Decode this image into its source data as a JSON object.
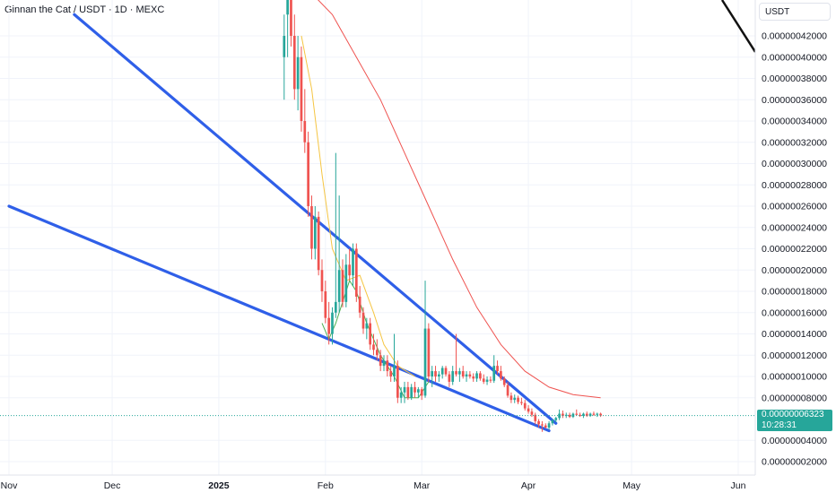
{
  "header": {
    "title": "Ginnan the Cat / USDT · 1D · MEXC",
    "unit": "USDT"
  },
  "price_tag": {
    "price": "0.00000006323",
    "countdown": "10:28:31"
  },
  "colors": {
    "up": "#26a69a",
    "down": "#ef5350",
    "trendline": "#2f5fe8",
    "ma_long": "#ef5350",
    "ma_short": "#f5c542",
    "ma_green": "#4caf50",
    "price_tag_bg": "#26a69a",
    "axis_text": "#131722",
    "grid": "#f0f3fa"
  },
  "chart_data": {
    "type": "candlestick",
    "y_axis": {
      "ticks": [
        "0.00000042000",
        "0.00000040000",
        "0.00000038000",
        "0.00000036000",
        "0.00000034000",
        "0.00000032000",
        "0.00000030000",
        "0.00000028000",
        "0.00000026000",
        "0.00000024000",
        "0.00000022000",
        "0.00000020000",
        "0.00000018000",
        "0.00000016000",
        "0.00000014000",
        "0.00000012000",
        "0.00000010000",
        "0.00000008000",
        "0.00000004000",
        "0.00000002000"
      ],
      "scale": 1e-08,
      "range": [
        0,
        44
      ]
    },
    "x_axis": {
      "ticks": [
        {
          "label": "Nov",
          "date": "2024-11-01"
        },
        {
          "label": "Dec",
          "date": "2024-12-01"
        },
        {
          "label": "2025",
          "date": "2025-01-01"
        },
        {
          "label": "Feb",
          "date": "2025-02-01"
        },
        {
          "label": "Mar",
          "date": "2025-03-01"
        },
        {
          "label": "Apr",
          "date": "2025-04-01"
        },
        {
          "label": "May",
          "date": "2025-05-01"
        },
        {
          "label": "Jun",
          "date": "2025-06-01"
        }
      ],
      "range": [
        "2024-11-01",
        "2025-06-05"
      ]
    },
    "candles_ohlc_1e-8": [
      {
        "date": "2025-01-20",
        "o": 40,
        "h": 44,
        "l": 36,
        "c": 42
      },
      {
        "date": "2025-01-21",
        "o": 44,
        "h": 46,
        "l": 40,
        "c": 46
      },
      {
        "date": "2025-01-22",
        "o": 46,
        "h": 47,
        "l": 41,
        "c": 42
      },
      {
        "date": "2025-01-23",
        "o": 42,
        "h": 44,
        "l": 36,
        "c": 37
      },
      {
        "date": "2025-01-24",
        "o": 37,
        "h": 42,
        "l": 35,
        "c": 40
      },
      {
        "date": "2025-01-25",
        "o": 40,
        "h": 41,
        "l": 33,
        "c": 34
      },
      {
        "date": "2025-01-26",
        "o": 34,
        "h": 37,
        "l": 31,
        "c": 32
      },
      {
        "date": "2025-01-27",
        "o": 32,
        "h": 33,
        "l": 25,
        "c": 26
      },
      {
        "date": "2025-01-28",
        "o": 26,
        "h": 27,
        "l": 21,
        "c": 22
      },
      {
        "date": "2025-01-29",
        "o": 22,
        "h": 26,
        "l": 21,
        "c": 25
      },
      {
        "date": "2025-01-30",
        "o": 25,
        "h": 25.5,
        "l": 19.5,
        "c": 20
      },
      {
        "date": "2025-01-31",
        "o": 20,
        "h": 21,
        "l": 17,
        "c": 18
      },
      {
        "date": "2025-02-01",
        "o": 18,
        "h": 19,
        "l": 15,
        "c": 15.5
      },
      {
        "date": "2025-02-02",
        "o": 15.5,
        "h": 17,
        "l": 13,
        "c": 14
      },
      {
        "date": "2025-02-03",
        "o": 14,
        "h": 16.5,
        "l": 13,
        "c": 16
      },
      {
        "date": "2025-02-04",
        "o": 16,
        "h": 31,
        "l": 15.5,
        "c": 17
      },
      {
        "date": "2025-02-05",
        "o": 17,
        "h": 27,
        "l": 16,
        "c": 20
      },
      {
        "date": "2025-02-06",
        "o": 20,
        "h": 21,
        "l": 16.5,
        "c": 17
      },
      {
        "date": "2025-02-07",
        "o": 17,
        "h": 21.5,
        "l": 16.5,
        "c": 20.5
      },
      {
        "date": "2025-02-08",
        "o": 20.5,
        "h": 22,
        "l": 19,
        "c": 19.5
      },
      {
        "date": "2025-02-09",
        "o": 19.5,
        "h": 22.5,
        "l": 18.5,
        "c": 22
      },
      {
        "date": "2025-02-10",
        "o": 22,
        "h": 22.5,
        "l": 17,
        "c": 17.5
      },
      {
        "date": "2025-02-11",
        "o": 17.5,
        "h": 18.5,
        "l": 15.5,
        "c": 16
      },
      {
        "date": "2025-02-12",
        "o": 16,
        "h": 16.5,
        "l": 14,
        "c": 14.5
      },
      {
        "date": "2025-02-13",
        "o": 14.5,
        "h": 15.5,
        "l": 13.5,
        "c": 15
      },
      {
        "date": "2025-02-14",
        "o": 15,
        "h": 15.5,
        "l": 12.5,
        "c": 13
      },
      {
        "date": "2025-02-15",
        "o": 13,
        "h": 14,
        "l": 12,
        "c": 12.5
      },
      {
        "date": "2025-02-16",
        "o": 12.5,
        "h": 13.5,
        "l": 11.5,
        "c": 12
      },
      {
        "date": "2025-02-17",
        "o": 12,
        "h": 12.5,
        "l": 10.5,
        "c": 11
      },
      {
        "date": "2025-02-18",
        "o": 11,
        "h": 12,
        "l": 10.5,
        "c": 11.5
      },
      {
        "date": "2025-02-19",
        "o": 11.5,
        "h": 12,
        "l": 10,
        "c": 10.5
      },
      {
        "date": "2025-02-20",
        "o": 10.5,
        "h": 11,
        "l": 9.5,
        "c": 10
      },
      {
        "date": "2025-02-21",
        "o": 10,
        "h": 14,
        "l": 9.5,
        "c": 11
      },
      {
        "date": "2025-02-22",
        "o": 11,
        "h": 11.5,
        "l": 7.5,
        "c": 8
      },
      {
        "date": "2025-02-23",
        "o": 8,
        "h": 9,
        "l": 7.5,
        "c": 8.5
      },
      {
        "date": "2025-02-24",
        "o": 8.5,
        "h": 9.5,
        "l": 7.5,
        "c": 9
      },
      {
        "date": "2025-02-25",
        "o": 9,
        "h": 9.5,
        "l": 7.8,
        "c": 8
      },
      {
        "date": "2025-02-26",
        "o": 8,
        "h": 9.3,
        "l": 7.8,
        "c": 9
      },
      {
        "date": "2025-02-27",
        "o": 9,
        "h": 9.5,
        "l": 8,
        "c": 8.5
      },
      {
        "date": "2025-02-28",
        "o": 8.5,
        "h": 9,
        "l": 8,
        "c": 8.8
      },
      {
        "date": "2025-03-01",
        "o": 8.8,
        "h": 9,
        "l": 7.8,
        "c": 8.2
      },
      {
        "date": "2025-03-02",
        "o": 8.2,
        "h": 19,
        "l": 8,
        "c": 14.5
      },
      {
        "date": "2025-03-03",
        "o": 14.5,
        "h": 15,
        "l": 9.5,
        "c": 10
      },
      {
        "date": "2025-03-04",
        "o": 10,
        "h": 11,
        "l": 9,
        "c": 10.5
      },
      {
        "date": "2025-03-05",
        "o": 10.5,
        "h": 11,
        "l": 9.5,
        "c": 10
      },
      {
        "date": "2025-03-06",
        "o": 10,
        "h": 10.5,
        "l": 9.5,
        "c": 10.2
      },
      {
        "date": "2025-03-07",
        "o": 10.2,
        "h": 11,
        "l": 9.8,
        "c": 10.8
      },
      {
        "date": "2025-03-08",
        "o": 10.8,
        "h": 11,
        "l": 10,
        "c": 10.2
      },
      {
        "date": "2025-03-09",
        "o": 10.2,
        "h": 10.5,
        "l": 9,
        "c": 9.5
      },
      {
        "date": "2025-03-10",
        "o": 9.5,
        "h": 11,
        "l": 9.2,
        "c": 10.5
      },
      {
        "date": "2025-03-11",
        "o": 10.5,
        "h": 14,
        "l": 10,
        "c": 10.2
      },
      {
        "date": "2025-03-12",
        "o": 10.2,
        "h": 10.8,
        "l": 9.5,
        "c": 10.5
      },
      {
        "date": "2025-03-13",
        "o": 10.5,
        "h": 11,
        "l": 9.8,
        "c": 10
      },
      {
        "date": "2025-03-14",
        "o": 10,
        "h": 10.5,
        "l": 9.5,
        "c": 10.2
      },
      {
        "date": "2025-03-15",
        "o": 10.2,
        "h": 10.5,
        "l": 9.8,
        "c": 10
      },
      {
        "date": "2025-03-16",
        "o": 10,
        "h": 10.3,
        "l": 9.5,
        "c": 9.8
      },
      {
        "date": "2025-03-17",
        "o": 9.8,
        "h": 10.5,
        "l": 9.5,
        "c": 10.3
      },
      {
        "date": "2025-03-18",
        "o": 10.3,
        "h": 10.5,
        "l": 9.6,
        "c": 9.8
      },
      {
        "date": "2025-03-19",
        "o": 9.8,
        "h": 10.2,
        "l": 9.3,
        "c": 9.5
      },
      {
        "date": "2025-03-20",
        "o": 9.5,
        "h": 10,
        "l": 9.2,
        "c": 9.7
      },
      {
        "date": "2025-03-21",
        "o": 9.7,
        "h": 10,
        "l": 9.4,
        "c": 9.6
      },
      {
        "date": "2025-03-22",
        "o": 9.6,
        "h": 12,
        "l": 9.4,
        "c": 11
      },
      {
        "date": "2025-03-23",
        "o": 11,
        "h": 11.5,
        "l": 10.2,
        "c": 10.5
      },
      {
        "date": "2025-03-24",
        "o": 10.5,
        "h": 11,
        "l": 9.6,
        "c": 9.8
      },
      {
        "date": "2025-03-25",
        "o": 9.8,
        "h": 10,
        "l": 9,
        "c": 9.2
      },
      {
        "date": "2025-03-26",
        "o": 9.2,
        "h": 9.5,
        "l": 8,
        "c": 8.2
      },
      {
        "date": "2025-03-27",
        "o": 8.2,
        "h": 8.5,
        "l": 7.5,
        "c": 7.8
      },
      {
        "date": "2025-03-28",
        "o": 7.8,
        "h": 8.3,
        "l": 7.5,
        "c": 8
      },
      {
        "date": "2025-03-29",
        "o": 8,
        "h": 8.2,
        "l": 7.4,
        "c": 7.6
      },
      {
        "date": "2025-03-30",
        "o": 7.6,
        "h": 8,
        "l": 7.3,
        "c": 7.5
      },
      {
        "date": "2025-03-31",
        "o": 7.5,
        "h": 7.8,
        "l": 6.8,
        "c": 7
      },
      {
        "date": "2025-04-01",
        "o": 7,
        "h": 7.3,
        "l": 6.5,
        "c": 6.7
      },
      {
        "date": "2025-04-02",
        "o": 6.7,
        "h": 7,
        "l": 6.2,
        "c": 6.4
      },
      {
        "date": "2025-04-03",
        "o": 6.4,
        "h": 6.6,
        "l": 5.5,
        "c": 5.8
      },
      {
        "date": "2025-04-04",
        "o": 5.8,
        "h": 6,
        "l": 5.2,
        "c": 5.5
      },
      {
        "date": "2025-04-05",
        "o": 5.5,
        "h": 5.8,
        "l": 4.8,
        "c": 5.4
      },
      {
        "date": "2025-04-06",
        "o": 5.4,
        "h": 5.6,
        "l": 5.1,
        "c": 5.2
      },
      {
        "date": "2025-04-07",
        "o": 5.2,
        "h": 5.8,
        "l": 5,
        "c": 5.6
      },
      {
        "date": "2025-04-08",
        "o": 5.6,
        "h": 6,
        "l": 5.4,
        "c": 5.9
      },
      {
        "date": "2025-04-09",
        "o": 5.9,
        "h": 6.2,
        "l": 5.7,
        "c": 6.1
      },
      {
        "date": "2025-04-10",
        "o": 6.1,
        "h": 6.9,
        "l": 5.9,
        "c": 6.5
      },
      {
        "date": "2025-04-11",
        "o": 6.5,
        "h": 6.8,
        "l": 6.1,
        "c": 6.3
      },
      {
        "date": "2025-04-12",
        "o": 6.3,
        "h": 6.6,
        "l": 6.1,
        "c": 6.4
      },
      {
        "date": "2025-04-13",
        "o": 6.4,
        "h": 6.6,
        "l": 6.1,
        "c": 6.2
      },
      {
        "date": "2025-04-14",
        "o": 6.2,
        "h": 6.6,
        "l": 6.1,
        "c": 6.5
      },
      {
        "date": "2025-04-15",
        "o": 6.5,
        "h": 6.9,
        "l": 6.3,
        "c": 6.4
      },
      {
        "date": "2025-04-16",
        "o": 6.4,
        "h": 6.6,
        "l": 6.2,
        "c": 6.3
      },
      {
        "date": "2025-04-17",
        "o": 6.3,
        "h": 6.6,
        "l": 6.1,
        "c": 6.5
      },
      {
        "date": "2025-04-18",
        "o": 6.5,
        "h": 6.7,
        "l": 6.2,
        "c": 6.3
      },
      {
        "date": "2025-04-19",
        "o": 6.3,
        "h": 6.6,
        "l": 6.2,
        "c": 6.5
      },
      {
        "date": "2025-04-20",
        "o": 6.5,
        "h": 6.7,
        "l": 6.3,
        "c": 6.4
      },
      {
        "date": "2025-04-21",
        "o": 6.4,
        "h": 6.6,
        "l": 6.2,
        "c": 6.5
      },
      {
        "date": "2025-04-22",
        "o": 6.5,
        "h": 6.6,
        "l": 6.2,
        "c": 6.323
      }
    ],
    "ma_long_1e-8": [
      {
        "date": "2025-01-28",
        "v": 46
      },
      {
        "date": "2025-02-03",
        "v": 44
      },
      {
        "date": "2025-02-10",
        "v": 40
      },
      {
        "date": "2025-02-17",
        "v": 36
      },
      {
        "date": "2025-02-24",
        "v": 31
      },
      {
        "date": "2025-03-03",
        "v": 26
      },
      {
        "date": "2025-03-10",
        "v": 21
      },
      {
        "date": "2025-03-17",
        "v": 16.5
      },
      {
        "date": "2025-03-24",
        "v": 13
      },
      {
        "date": "2025-03-31",
        "v": 10.5
      },
      {
        "date": "2025-04-07",
        "v": 9
      },
      {
        "date": "2025-04-14",
        "v": 8.3
      },
      {
        "date": "2025-04-22",
        "v": 8
      }
    ],
    "ma_short_1e-8": [
      {
        "date": "2025-01-25",
        "v": 42
      },
      {
        "date": "2025-01-28",
        "v": 37
      },
      {
        "date": "2025-01-31",
        "v": 29
      },
      {
        "date": "2025-02-03",
        "v": 22
      },
      {
        "date": "2025-02-07",
        "v": 19
      },
      {
        "date": "2025-02-11",
        "v": 19.5
      },
      {
        "date": "2025-02-15",
        "v": 16
      },
      {
        "date": "2025-02-18",
        "v": 13
      },
      {
        "date": "2025-02-22",
        "v": 11
      },
      {
        "date": "2025-02-27",
        "v": 10
      }
    ],
    "ma_green_1e-8": [
      {
        "date": "2025-01-31",
        "v": 15
      },
      {
        "date": "2025-02-02",
        "v": 13.5
      },
      {
        "date": "2025-02-04",
        "v": 15
      },
      {
        "date": "2025-02-06",
        "v": 17
      },
      {
        "date": "2025-02-08",
        "v": 19
      },
      {
        "date": "2025-02-10",
        "v": 18
      },
      {
        "date": "2025-02-13",
        "v": 15
      },
      {
        "date": "2025-02-17",
        "v": 12
      },
      {
        "date": "2025-02-21",
        "v": 10
      },
      {
        "date": "2025-02-24",
        "v": 8
      },
      {
        "date": "2025-02-28",
        "v": 8
      },
      {
        "date": "2025-03-03",
        "v": 9.5
      }
    ],
    "trendlines_1e-8": [
      {
        "from": {
          "date": "2024-11-01",
          "v": 26
        },
        "to": {
          "date": "2025-04-07",
          "v": 4.9
        }
      },
      {
        "from": {
          "date": "2024-11-20",
          "v": 44
        },
        "to": {
          "date": "2025-04-09",
          "v": 5.6
        }
      }
    ],
    "current_price_1e-8": 6.323
  }
}
